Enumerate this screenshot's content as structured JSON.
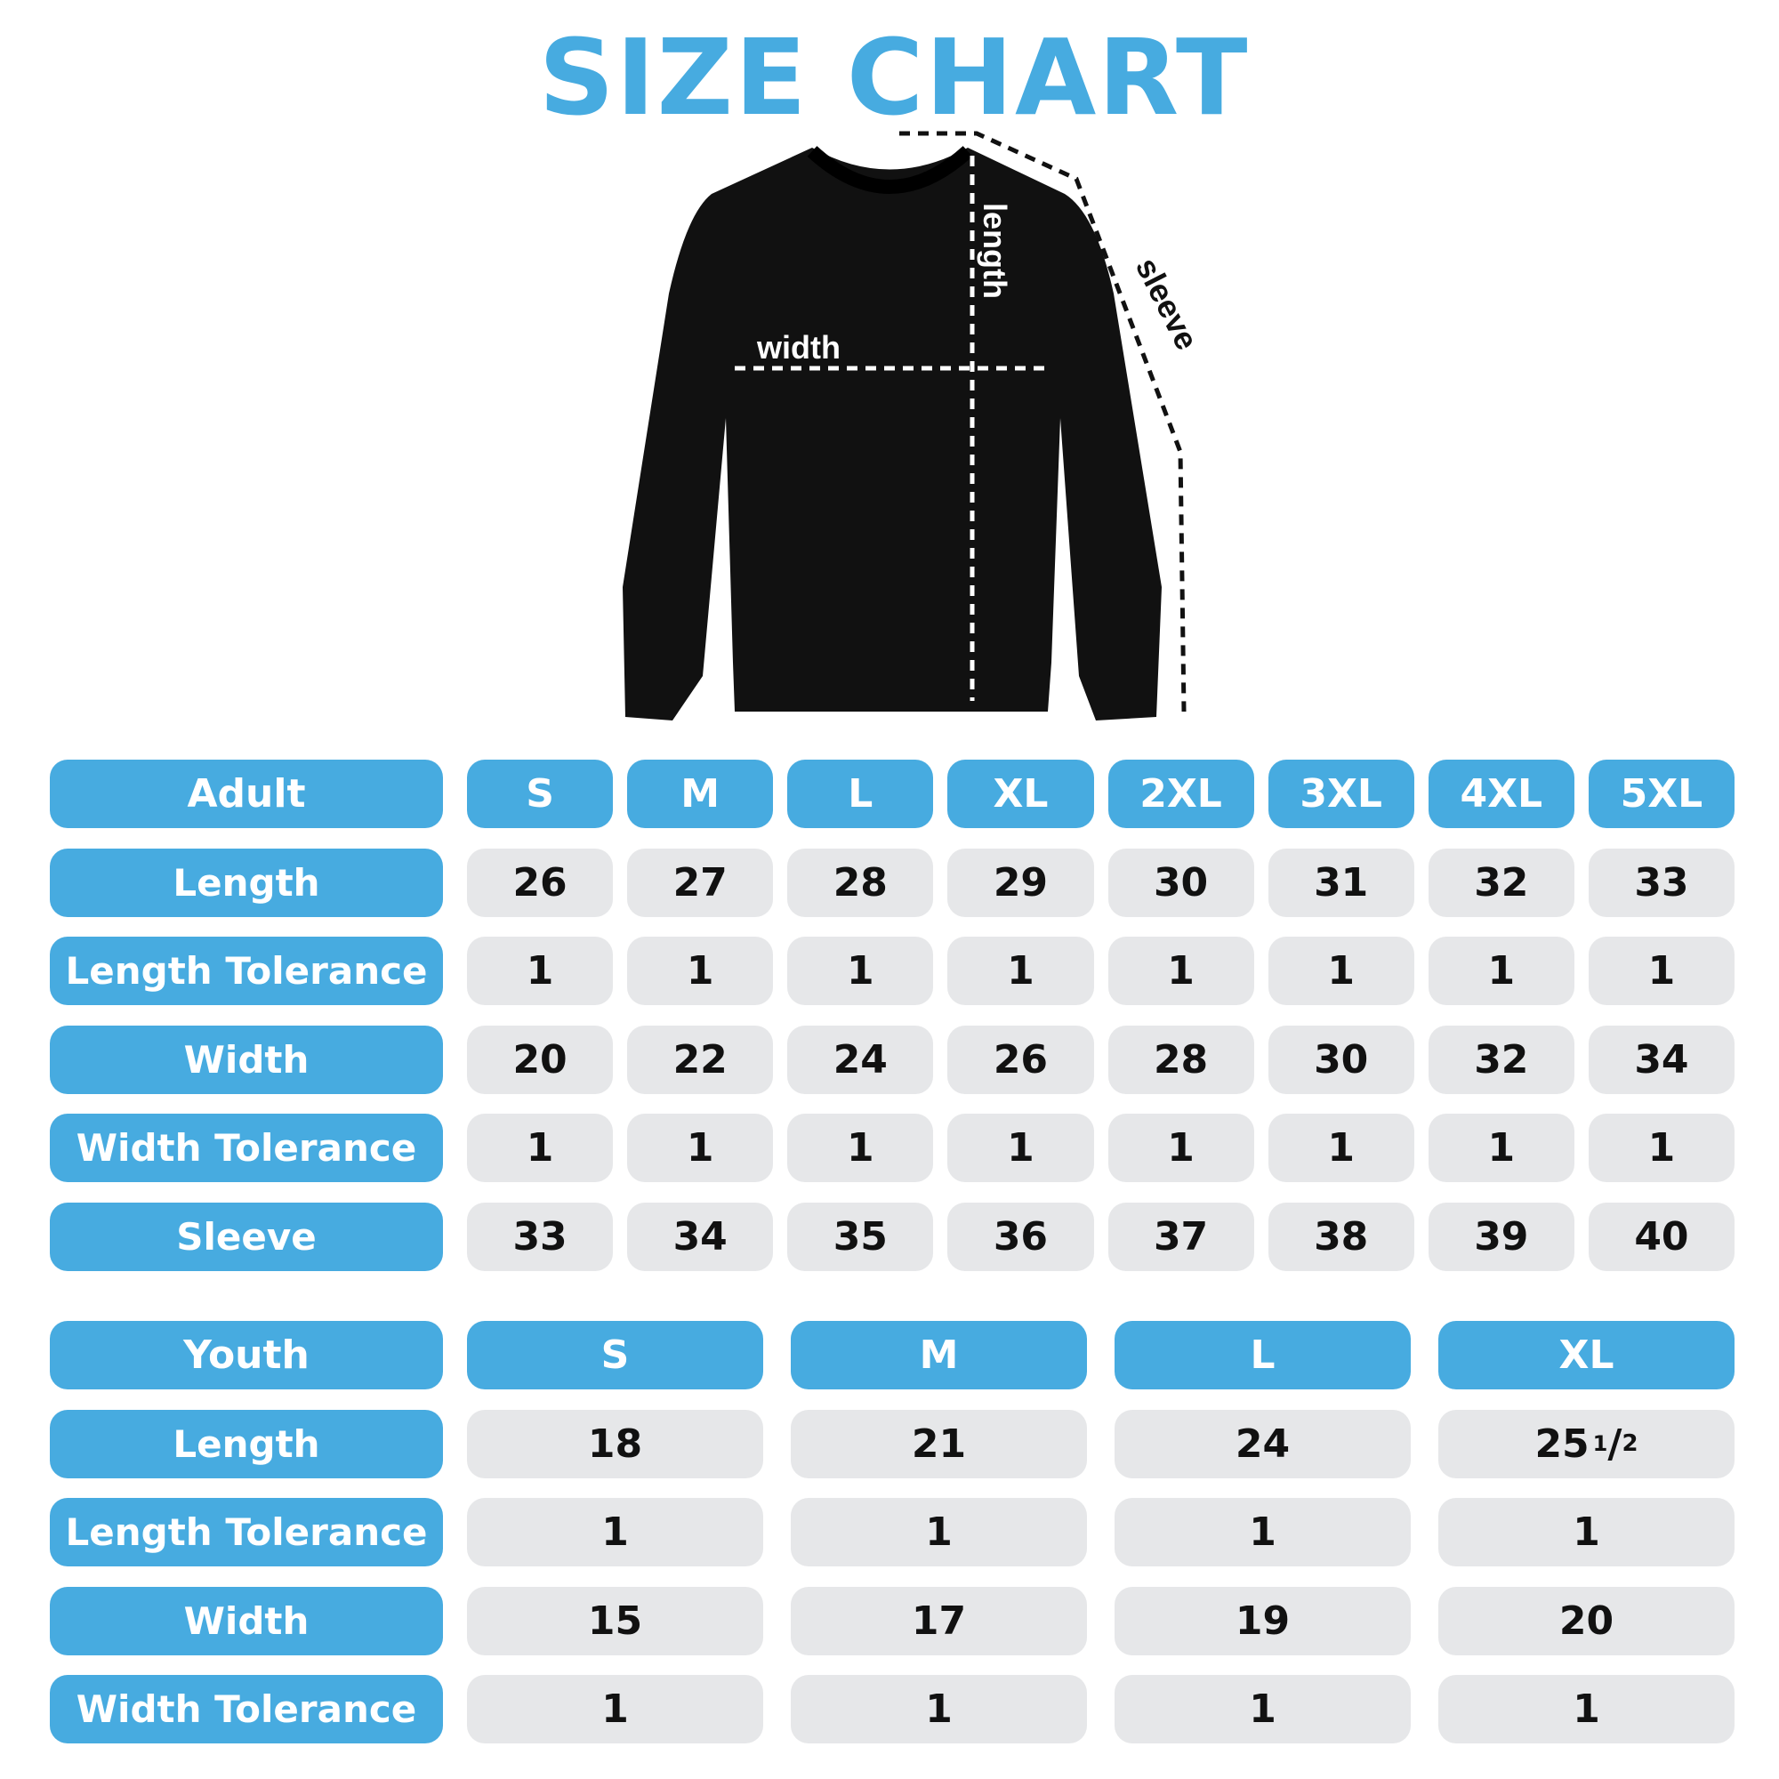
{
  "title": "SIZE CHART",
  "colors": {
    "accent": "#47abe0",
    "cell_bg": "#e6e7e9",
    "text": "#111111"
  },
  "diagram": {
    "width_label": "width",
    "length_label": "length",
    "sleeve_label": "sleeve"
  },
  "chart_data": [
    {
      "type": "table",
      "header": "Adult",
      "sizes": [
        "S",
        "M",
        "L",
        "XL",
        "2XL",
        "3XL",
        "4XL",
        "5XL"
      ],
      "rows": [
        {
          "label": "Length",
          "values": [
            "26",
            "27",
            "28",
            "29",
            "30",
            "31",
            "32",
            "33"
          ]
        },
        {
          "label": "Length Tolerance",
          "values": [
            "1",
            "1",
            "1",
            "1",
            "1",
            "1",
            "1",
            "1"
          ]
        },
        {
          "label": "Width",
          "values": [
            "20",
            "22",
            "24",
            "26",
            "28",
            "30",
            "32",
            "34"
          ]
        },
        {
          "label": "Width Tolerance",
          "values": [
            "1",
            "1",
            "1",
            "1",
            "1",
            "1",
            "1",
            "1"
          ]
        },
        {
          "label": "Sleeve",
          "values": [
            "33",
            "34",
            "35",
            "36",
            "37",
            "38",
            "39",
            "40"
          ]
        }
      ]
    },
    {
      "type": "table",
      "header": "Youth",
      "sizes": [
        "S",
        "M",
        "L",
        "XL"
      ],
      "rows": [
        {
          "label": "Length",
          "values": [
            "18",
            "21",
            "24",
            "25 1/2"
          ]
        },
        {
          "label": "Length Tolerance",
          "values": [
            "1",
            "1",
            "1",
            "1"
          ]
        },
        {
          "label": "Width",
          "values": [
            "15",
            "17",
            "19",
            "20"
          ]
        },
        {
          "label": "Width Tolerance",
          "values": [
            "1",
            "1",
            "1",
            "1"
          ]
        }
      ]
    }
  ]
}
